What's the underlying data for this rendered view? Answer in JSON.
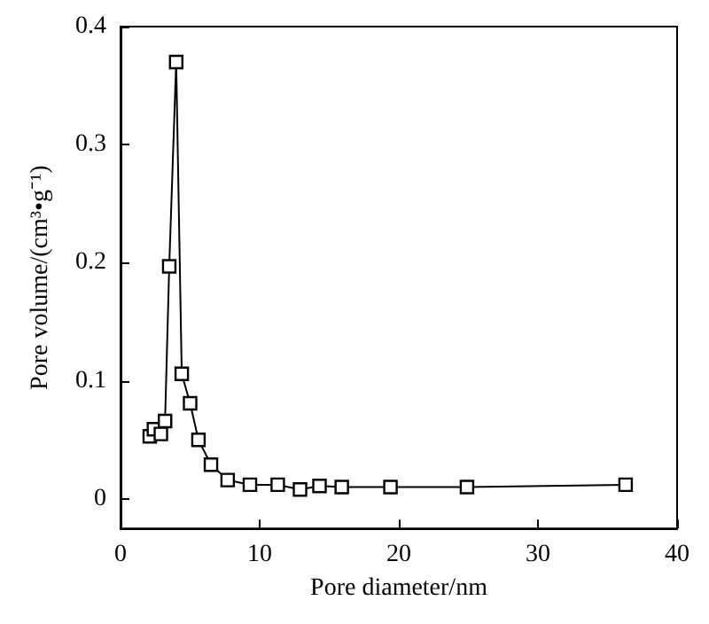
{
  "chart_data": {
    "type": "line",
    "xlabel": "Pore diameter/nm",
    "ylabel": "Pore volume/(cm³•g⁻¹)",
    "x": [
      2.1,
      2.4,
      2.9,
      3.2,
      3.5,
      4.0,
      4.4,
      5.0,
      5.6,
      6.5,
      7.7,
      9.3,
      11.3,
      12.9,
      14.3,
      15.9,
      19.4,
      24.9,
      36.3
    ],
    "series": [
      {
        "color": "#000000",
        "values": [
          0.053,
          0.059,
          0.055,
          0.066,
          0.197,
          0.37,
          0.106,
          0.081,
          0.05,
          0.029,
          0.016,
          0.012,
          0.012,
          0.008,
          0.011,
          0.01,
          0.01,
          0.01,
          0.012
        ]
      }
    ],
    "xlim": [
      0,
      40
    ],
    "xticks": [
      0,
      10,
      20,
      30,
      40
    ],
    "ylim": [
      -0.025,
      0.4
    ],
    "yticks": [
      0,
      0.1,
      0.2,
      0.3,
      0.4
    ],
    "marker": "square",
    "line_style": "solid"
  }
}
